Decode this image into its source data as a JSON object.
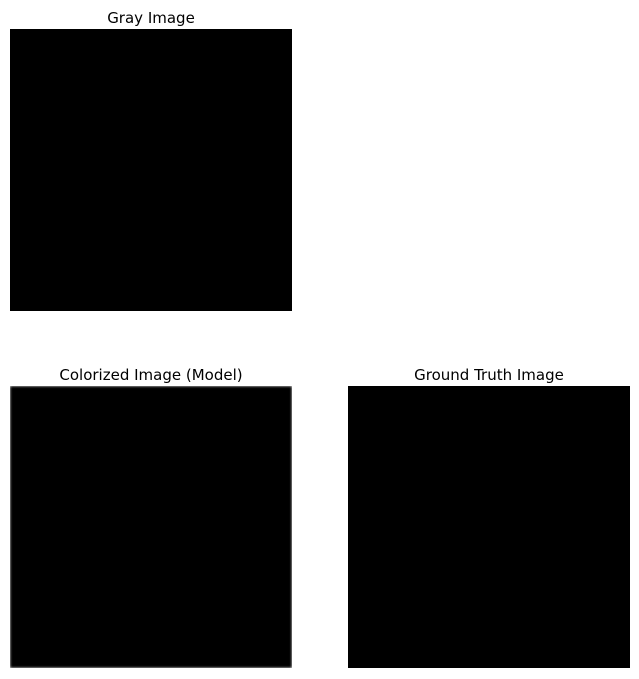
{
  "panels": [
    {
      "id": "gray",
      "title": "Gray Image"
    },
    {
      "id": "model",
      "title": "Colorized Image (Model)"
    },
    {
      "id": "truth",
      "title": "Ground Truth Image"
    }
  ]
}
